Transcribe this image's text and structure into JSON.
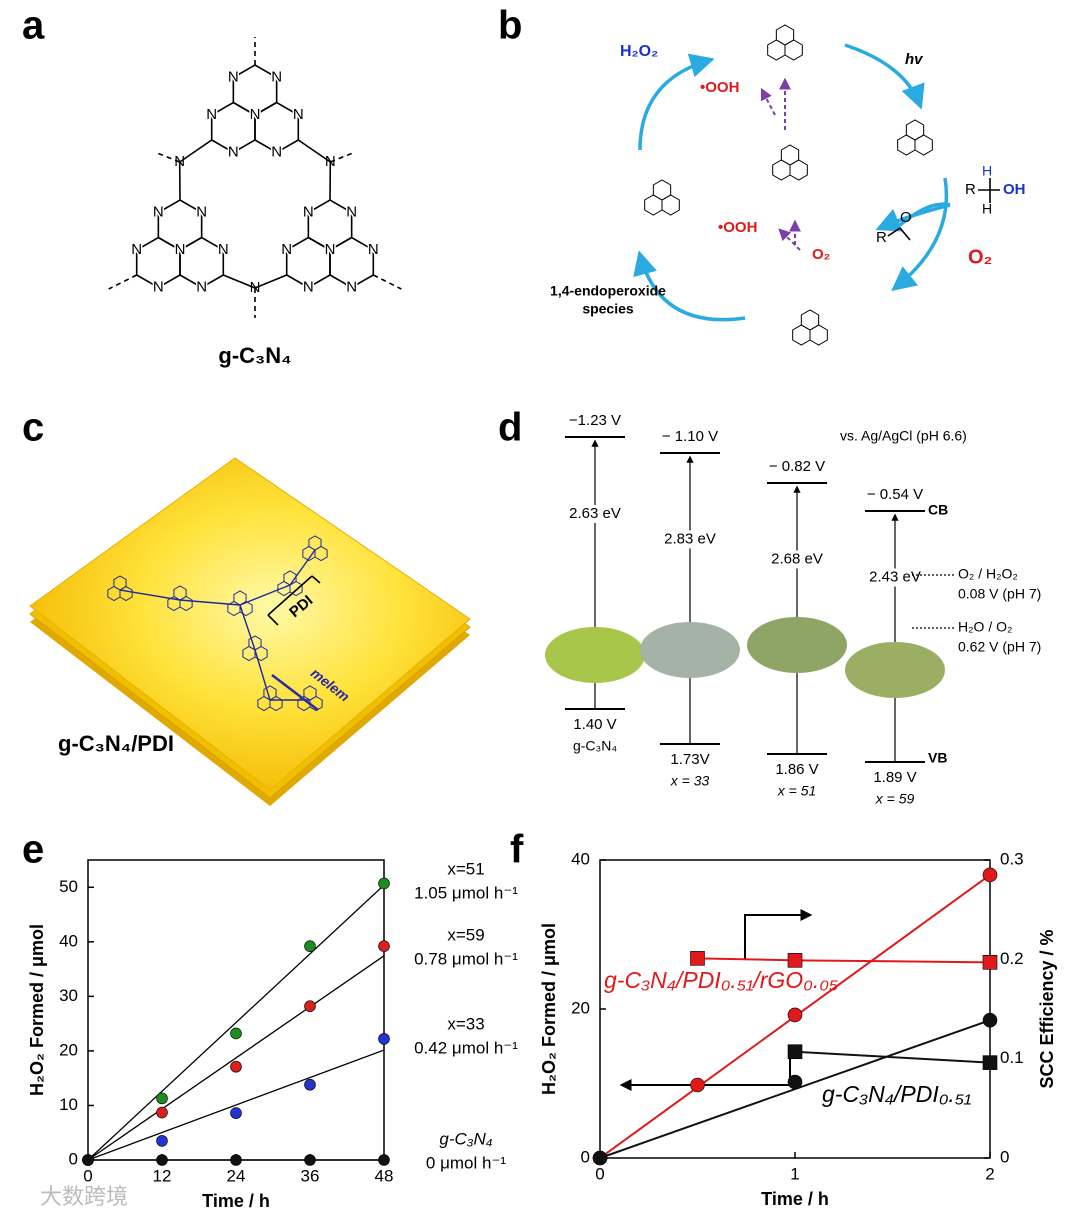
{
  "panel_labels": [
    "a",
    "b",
    "c",
    "d",
    "e",
    "f"
  ],
  "panel_a": {
    "atom": "N",
    "caption": "g-C₃N₄"
  },
  "panel_b": {
    "product": "H₂O₂",
    "radical_top": "•OOH",
    "light": "hv",
    "alcohol_r": "R",
    "alcohol_h": "H",
    "alcohol_oh": "OH",
    "aldehyde_r": "R",
    "aldehyde_o": "O",
    "oxygen": "O₂",
    "intermediate": [
      "1,4-endoperoxide",
      "species"
    ],
    "radical_bottom": "•OOH",
    "oxygen_small": "O₂"
  },
  "panel_c": {
    "title": "g-C₃N₄/PDI",
    "pdi": "PDI",
    "melem": "melem"
  },
  "panel_d": {
    "reference": "vs. Ag/AgCl (pH 6.6)",
    "cb_label": "CB",
    "vb_label": "VB",
    "samples": [
      {
        "name": "g-C₃N₄",
        "cb": "−1.23 V",
        "gap": "2.63 eV",
        "vb": "1.40 V"
      },
      {
        "name": "x = 33",
        "cb": "− 1.10 V",
        "gap": "2.83 eV",
        "vb": "1.73V"
      },
      {
        "name": "x = 51",
        "cb": "− 0.82 V",
        "gap": "2.68 eV",
        "vb": "1.86 V"
      },
      {
        "name": "x = 59",
        "cb": "− 0.54 V",
        "gap": "2.43 eV",
        "vb": "1.89 V"
      }
    ],
    "redox": [
      {
        "couple": "O₂ / H₂O₂",
        "potential": "0.08 V (pH 7)"
      },
      {
        "couple": "H₂O / O₂",
        "potential": "0.62 V (pH 7)"
      }
    ]
  },
  "chart_data": [
    {
      "type": "scatter",
      "xlabel": "Time / h",
      "ylabel": "H₂O₂ Formed / μmol",
      "x": [
        0,
        12,
        24,
        36,
        48
      ],
      "xlim": [
        0,
        48
      ],
      "xticks": [
        0,
        12,
        24,
        36,
        48
      ],
      "ylim": [
        0,
        55
      ],
      "yticks": [
        0,
        10,
        20,
        30,
        40,
        50
      ],
      "series": [
        {
          "name": "x=51",
          "color": "#1e8c1e",
          "values": [
            0,
            11.3,
            23.2,
            39.2,
            50.7
          ],
          "slope": 1.05,
          "slope_label": "1.05 μmol h⁻¹"
        },
        {
          "name": "x=59",
          "color": "#d9201f",
          "values": [
            0,
            8.7,
            17.1,
            28.2,
            39.2
          ],
          "slope": 0.78,
          "slope_label": "0.78 μmol h⁻¹"
        },
        {
          "name": "x=33",
          "color": "#2533d0",
          "values": [
            0,
            3.5,
            8.6,
            13.8,
            22.2
          ],
          "slope": 0.42,
          "slope_label": "0.42 μmol h⁻¹"
        },
        {
          "name": "g-C₃N₄",
          "color": "#111111",
          "values": [
            0,
            0,
            0,
            0,
            0
          ],
          "slope": 0,
          "slope_label": "0 μmol h⁻¹"
        }
      ]
    },
    {
      "type": "scatter",
      "xlabel": "Time / h",
      "ylabel": "H₂O₂ Formed / μmol",
      "y2label": "SCC Efficiency / %",
      "xlim": [
        0,
        2
      ],
      "xticks": [
        0,
        1,
        2
      ],
      "ylim": [
        0,
        40
      ],
      "yticks": [
        0,
        20,
        40
      ],
      "y2lim": [
        0,
        0.3
      ],
      "y2ticks": [
        0,
        0.1,
        0.2,
        0.3
      ],
      "series": [
        {
          "name": "g-C₃N₄/PDI₀.₅₁/rGO₀.₀₅",
          "color": "#e0191a",
          "marker": "circle",
          "x": [
            0,
            0.5,
            1,
            2
          ],
          "values": [
            0,
            9.8,
            19.2,
            38
          ]
        },
        {
          "name": "g-C₃N₄/PDI₀.₅₁",
          "color": "#111111",
          "marker": "circle",
          "x": [
            0,
            1,
            2
          ],
          "values": [
            0,
            10.2,
            18.5
          ]
        },
        {
          "color": "#e0191a",
          "marker": "square",
          "axis": "y2",
          "x": [
            0.5,
            1,
            2
          ],
          "values": [
            0.201,
            0.199,
            0.197
          ]
        },
        {
          "color": "#111111",
          "marker": "square",
          "axis": "y2",
          "x": [
            1,
            2
          ],
          "values": [
            0.107,
            0.096
          ]
        }
      ]
    }
  ],
  "watermark": "大数跨境"
}
